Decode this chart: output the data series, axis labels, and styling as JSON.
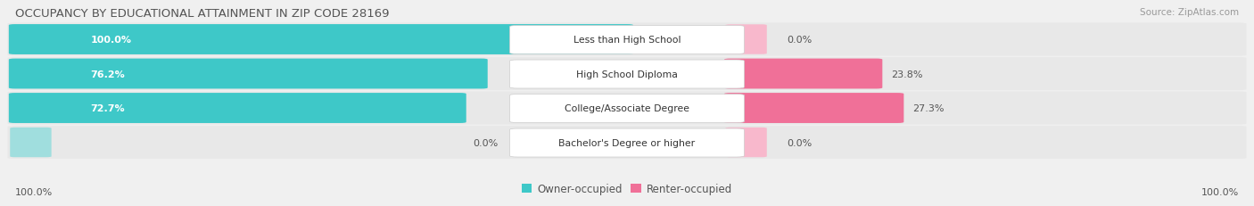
{
  "title": "OCCUPANCY BY EDUCATIONAL ATTAINMENT IN ZIP CODE 28169",
  "source": "Source: ZipAtlas.com",
  "categories": [
    "Less than High School",
    "High School Diploma",
    "College/Associate Degree",
    "Bachelor's Degree or higher"
  ],
  "owner_values": [
    100.0,
    76.2,
    72.7,
    0.0
  ],
  "renter_values": [
    0.0,
    23.8,
    27.3,
    0.0
  ],
  "owner_color": "#3ec8c8",
  "renter_color": "#f07098",
  "owner_stub_color": "#a0dede",
  "renter_stub_color": "#f8b8cc",
  "row_bg_color": "#e8e8e8",
  "fig_bg_color": "#f0f0f0",
  "title_color": "#555555",
  "source_color": "#999999",
  "label_color": "#555555",
  "legend_owner": "Owner-occupied",
  "legend_renter": "Renter-occupied",
  "figwidth": 14.06,
  "figheight": 2.32
}
